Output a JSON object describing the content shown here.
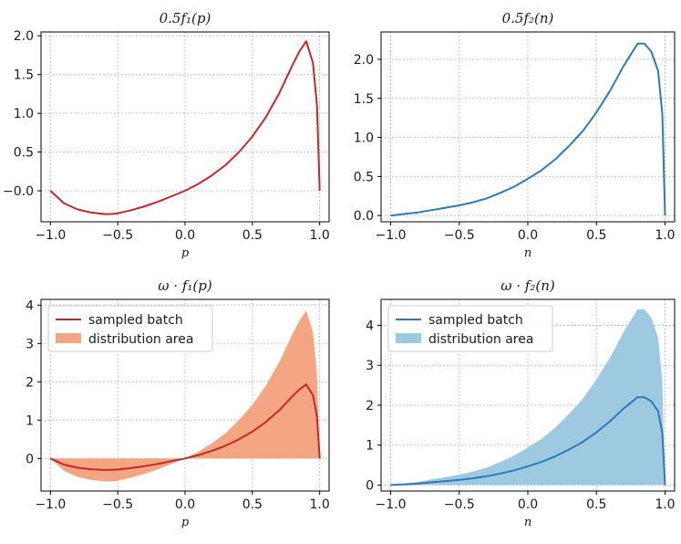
{
  "chart_data": [
    {
      "type": "line",
      "title": "0.5f₁(p)",
      "xlabel": "p",
      "ylabel": "",
      "xlim": [
        -1.07,
        1.07
      ],
      "ylim": [
        -0.4,
        2.05
      ],
      "xticks": [
        "−1.0",
        "−0.5",
        "0.0",
        "0.5",
        "1.0"
      ],
      "yticks": [
        "−0.0",
        "0.5",
        "1.0",
        "1.5",
        "2.0"
      ],
      "grid": true,
      "legend": null,
      "colors": {
        "line": "#c62828"
      },
      "series": [
        {
          "x": [
            -1.0,
            -0.9,
            -0.8,
            -0.7,
            -0.6,
            -0.55,
            -0.5,
            -0.4,
            -0.3,
            -0.2,
            -0.1,
            0.0,
            0.1,
            0.2,
            0.3,
            0.4,
            0.5,
            0.6,
            0.7,
            0.8,
            0.85,
            0.9,
            0.95,
            0.98,
            1.0
          ],
          "values": [
            0.0,
            -0.16,
            -0.24,
            -0.28,
            -0.3,
            -0.3,
            -0.29,
            -0.25,
            -0.2,
            -0.14,
            -0.07,
            0.0,
            0.09,
            0.2,
            0.33,
            0.5,
            0.7,
            0.95,
            1.26,
            1.63,
            1.8,
            1.93,
            1.65,
            1.1,
            0.0
          ]
        }
      ]
    },
    {
      "type": "line",
      "title": "0.5f₂(n)",
      "xlabel": "n",
      "ylabel": "",
      "xlim": [
        -1.07,
        1.07
      ],
      "ylim": [
        -0.08,
        2.35
      ],
      "xticks": [
        "−1.0",
        "−0.5",
        "0.0",
        "0.5",
        "1.0"
      ],
      "yticks": [
        "0.0",
        "0.5",
        "1.0",
        "1.5",
        "2.0"
      ],
      "grid": true,
      "legend": null,
      "colors": {
        "line": "#2c7bb6"
      },
      "series": [
        {
          "x": [
            -1.0,
            -0.9,
            -0.8,
            -0.7,
            -0.6,
            -0.5,
            -0.4,
            -0.3,
            -0.2,
            -0.1,
            0.0,
            0.1,
            0.2,
            0.3,
            0.4,
            0.5,
            0.6,
            0.7,
            0.8,
            0.85,
            0.9,
            0.95,
            0.98,
            1.0
          ],
          "values": [
            0.0,
            0.02,
            0.04,
            0.07,
            0.1,
            0.13,
            0.17,
            0.22,
            0.29,
            0.37,
            0.47,
            0.58,
            0.72,
            0.89,
            1.08,
            1.32,
            1.6,
            1.92,
            2.2,
            2.2,
            2.1,
            1.85,
            1.3,
            0.0
          ]
        }
      ]
    },
    {
      "type": "area",
      "title": "ω · f₁(p)",
      "xlabel": "p",
      "ylabel": "",
      "xlim": [
        -1.07,
        1.07
      ],
      "ylim": [
        -0.85,
        4.15
      ],
      "xticks": [
        "−1.0",
        "−0.5",
        "0.0",
        "0.5",
        "1.0"
      ],
      "yticks": [
        "0",
        "1",
        "2",
        "3",
        "4"
      ],
      "grid": true,
      "legend": {
        "position": "top-left",
        "entries": [
          "sampled batch",
          "distribution area"
        ]
      },
      "colors": {
        "line": "#c62828",
        "area": "#f4a582"
      },
      "area": {
        "name": "distribution area",
        "x": [
          -1.0,
          -0.9,
          -0.8,
          -0.7,
          -0.6,
          -0.55,
          -0.5,
          -0.4,
          -0.3,
          -0.2,
          -0.1,
          0.0,
          0.1,
          0.2,
          0.3,
          0.4,
          0.5,
          0.6,
          0.7,
          0.8,
          0.85,
          0.9,
          0.95,
          0.98,
          1.0
        ],
        "values": [
          0.0,
          -0.32,
          -0.48,
          -0.56,
          -0.6,
          -0.6,
          -0.58,
          -0.5,
          -0.4,
          -0.28,
          -0.14,
          0.0,
          0.18,
          0.4,
          0.66,
          1.0,
          1.4,
          1.9,
          2.52,
          3.26,
          3.6,
          3.86,
          3.3,
          2.2,
          0.0
        ]
      },
      "series": [
        {
          "name": "sampled batch",
          "x": [
            -1.0,
            -0.9,
            -0.8,
            -0.7,
            -0.6,
            -0.5,
            -0.4,
            -0.3,
            -0.2,
            -0.1,
            0.0,
            0.1,
            0.2,
            0.3,
            0.4,
            0.5,
            0.6,
            0.7,
            0.8,
            0.85,
            0.9,
            0.95,
            0.98,
            1.0
          ],
          "values": [
            0.0,
            -0.16,
            -0.24,
            -0.28,
            -0.3,
            -0.29,
            -0.25,
            -0.2,
            -0.14,
            -0.07,
            0.0,
            0.09,
            0.2,
            0.33,
            0.5,
            0.7,
            0.95,
            1.26,
            1.63,
            1.8,
            1.93,
            1.65,
            1.1,
            0.0
          ]
        }
      ]
    },
    {
      "type": "area",
      "title": "ω · f₂(n)",
      "xlabel": "n",
      "ylabel": "",
      "xlim": [
        -1.07,
        1.07
      ],
      "ylim": [
        -0.15,
        4.65
      ],
      "xticks": [
        "−1.0",
        "−0.5",
        "0.0",
        "0.5",
        "1.0"
      ],
      "yticks": [
        "0",
        "1",
        "2",
        "3",
        "4"
      ],
      "grid": true,
      "legend": {
        "position": "top-left",
        "entries": [
          "sampled batch",
          "distribution area"
        ]
      },
      "colors": {
        "line": "#2c7bb6",
        "area": "#9ecae1"
      },
      "area": {
        "name": "distribution area",
        "x": [
          -1.0,
          -0.9,
          -0.8,
          -0.7,
          -0.6,
          -0.5,
          -0.4,
          -0.3,
          -0.2,
          -0.1,
          0.0,
          0.1,
          0.2,
          0.3,
          0.4,
          0.5,
          0.6,
          0.7,
          0.8,
          0.85,
          0.9,
          0.95,
          0.98,
          1.0
        ],
        "values": [
          0.0,
          0.04,
          0.08,
          0.14,
          0.2,
          0.26,
          0.34,
          0.44,
          0.58,
          0.74,
          0.94,
          1.16,
          1.44,
          1.78,
          2.16,
          2.64,
          3.2,
          3.84,
          4.4,
          4.4,
          4.2,
          3.7,
          2.6,
          0.0
        ]
      },
      "series": [
        {
          "name": "sampled batch",
          "x": [
            -1.0,
            -0.9,
            -0.8,
            -0.7,
            -0.6,
            -0.5,
            -0.4,
            -0.3,
            -0.2,
            -0.1,
            0.0,
            0.1,
            0.2,
            0.3,
            0.4,
            0.5,
            0.6,
            0.7,
            0.8,
            0.85,
            0.9,
            0.95,
            0.98,
            1.0
          ],
          "values": [
            0.0,
            0.02,
            0.04,
            0.07,
            0.1,
            0.13,
            0.17,
            0.22,
            0.29,
            0.37,
            0.47,
            0.58,
            0.72,
            0.89,
            1.08,
            1.32,
            1.6,
            1.92,
            2.2,
            2.2,
            2.1,
            1.85,
            1.3,
            0.0
          ]
        }
      ]
    }
  ]
}
